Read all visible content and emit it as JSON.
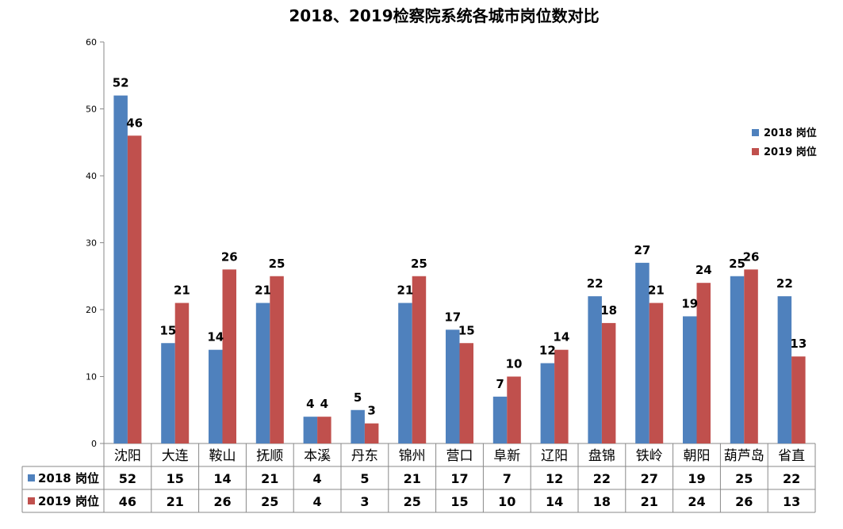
{
  "chart_data": {
    "type": "bar",
    "title": "2018、2019检察院系统各城市岗位数对比",
    "categories": [
      "沈阳",
      "大连",
      "鞍山",
      "抚顺",
      "本溪",
      "丹东",
      "锦州",
      "营口",
      "阜新",
      "辽阳",
      "盘锦",
      "铁岭",
      "朝阳",
      "葫芦岛",
      "省直"
    ],
    "series": [
      {
        "name": "2018 岗位",
        "color": "#4F81BD",
        "values": [
          52,
          15,
          14,
          21,
          4,
          5,
          21,
          17,
          7,
          12,
          22,
          27,
          19,
          25,
          22
        ]
      },
      {
        "name": "2019 岗位",
        "color": "#C0504D",
        "values": [
          46,
          21,
          26,
          25,
          4,
          3,
          25,
          15,
          10,
          14,
          18,
          21,
          24,
          26,
          13
        ]
      }
    ],
    "ylim": [
      0,
      60
    ],
    "yticks": [
      0,
      10,
      20,
      30,
      40,
      50,
      60
    ],
    "legend_position": "right",
    "data_table": true,
    "grid": false
  }
}
